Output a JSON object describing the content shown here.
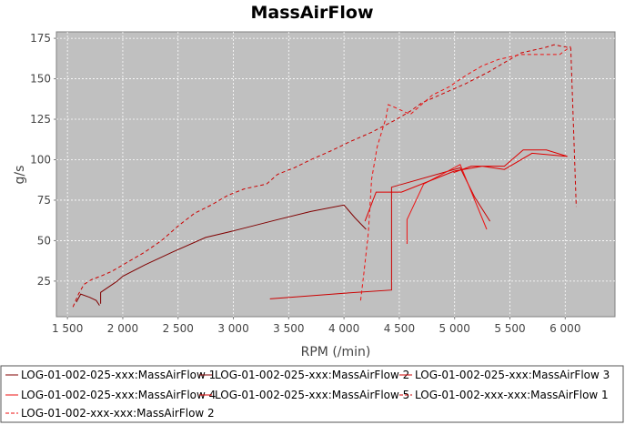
{
  "chart_data": {
    "type": "line",
    "title": "MassAirFlow",
    "xlabel": "RPM (/min)",
    "ylabel": "g/s",
    "xlim": [
      1400,
      6450
    ],
    "ylim": [
      3,
      179
    ],
    "x_ticks": [
      1500,
      2000,
      2500,
      3000,
      3500,
      4000,
      4500,
      5000,
      5500,
      6000
    ],
    "x_tick_labels": [
      "1 500",
      "2 000",
      "2 500",
      "3 000",
      "3 500",
      "4 000",
      "4 500",
      "5 000",
      "5 500",
      "6 000"
    ],
    "y_ticks": [
      25,
      50,
      75,
      100,
      125,
      150,
      175
    ],
    "y_tick_labels": [
      "25",
      "50",
      "75",
      "100",
      "125",
      "150",
      "175"
    ],
    "grid": true,
    "legend_position": "bottom",
    "series": [
      {
        "name": "LOG-01-002-025-xxx:MassAirFlow 1",
        "color": "#800000",
        "dash": false,
        "points": [
          [
            1580,
            12
          ],
          [
            1620,
            17
          ],
          [
            1700,
            15
          ],
          [
            1760,
            13
          ],
          [
            1790,
            10
          ],
          [
            1770,
            12
          ]
        ]
      },
      {
        "name": "LOG-01-002-025-xxx:MassAirFlow 2",
        "color": "#800000",
        "dash": false,
        "points": [
          [
            1800,
            11
          ],
          [
            1800,
            18
          ],
          [
            1950,
            25
          ],
          [
            2000,
            28
          ],
          [
            2200,
            35
          ],
          [
            2450,
            43
          ],
          [
            2750,
            52
          ],
          [
            3000,
            56
          ],
          [
            3400,
            63
          ],
          [
            3700,
            68
          ],
          [
            4000,
            72
          ],
          [
            4100,
            64
          ],
          [
            4200,
            57
          ]
        ]
      },
      {
        "name": "LOG-01-002-025-xxx:MassAirFlow 3",
        "color": "#cc0000",
        "dash": false,
        "points": [
          [
            3330,
            14
          ],
          [
            4000,
            17.5
          ],
          [
            4430,
            19.5
          ],
          [
            4430,
            83
          ],
          [
            5050,
            95
          ],
          [
            5180,
            77
          ],
          [
            5320,
            62
          ]
        ]
      },
      {
        "name": "LOG-01-002-025-xxx:MassAirFlow 4",
        "color": "#ee1111",
        "dash": false,
        "points": [
          [
            4570,
            48
          ],
          [
            4570,
            63
          ],
          [
            4720,
            85
          ],
          [
            5050,
            97
          ],
          [
            5290,
            57
          ]
        ]
      },
      {
        "name": "LOG-01-002-025-xxx:MassAirFlow 5",
        "color": "#dd0000",
        "dash": false,
        "points": [
          [
            4190,
            62
          ],
          [
            4290,
            80
          ],
          [
            4520,
            80
          ],
          [
            5000,
            93
          ],
          [
            5250,
            96
          ],
          [
            5450,
            94
          ],
          [
            5700,
            104
          ],
          [
            6020,
            102
          ],
          [
            5830,
            106
          ],
          [
            5620,
            106
          ],
          [
            5450,
            96
          ],
          [
            5150,
            96
          ],
          [
            4990,
            92
          ]
        ]
      },
      {
        "name": "LOG-01-002-xxx-xxx:MassAirFlow 1",
        "color": "#cc0000",
        "dash": true,
        "points": [
          [
            1550,
            9
          ],
          [
            1600,
            17
          ],
          [
            1650,
            23
          ],
          [
            1720,
            26
          ],
          [
            1800,
            28
          ],
          [
            1900,
            31
          ],
          [
            2000,
            35
          ],
          [
            2200,
            43
          ],
          [
            2350,
            50
          ],
          [
            2500,
            59
          ],
          [
            2650,
            67
          ],
          [
            2800,
            72
          ],
          [
            2950,
            78
          ],
          [
            3100,
            82
          ],
          [
            3300,
            85
          ],
          [
            3400,
            91
          ],
          [
            3550,
            95
          ],
          [
            3700,
            100
          ],
          [
            3900,
            106
          ],
          [
            4050,
            111
          ],
          [
            4250,
            117
          ],
          [
            4450,
            124
          ],
          [
            4600,
            130
          ],
          [
            4700,
            135
          ],
          [
            4900,
            141
          ],
          [
            5100,
            147
          ],
          [
            5300,
            154
          ],
          [
            5450,
            160
          ],
          [
            5600,
            166
          ],
          [
            5800,
            169
          ],
          [
            5900,
            171
          ],
          [
            6050,
            169
          ],
          [
            6100,
            71
          ]
        ]
      },
      {
        "name": "LOG-01-002-xxx-xxx:MassAirFlow 2",
        "color": "#ee1111",
        "dash": true,
        "points": [
          [
            4150,
            13
          ],
          [
            4180,
            30
          ],
          [
            4220,
            55
          ],
          [
            4250,
            88
          ],
          [
            4300,
            108
          ],
          [
            4380,
            126
          ],
          [
            4400,
            134
          ],
          [
            4470,
            132
          ],
          [
            4600,
            128
          ],
          [
            4700,
            134
          ],
          [
            4800,
            140
          ],
          [
            4950,
            145
          ],
          [
            5100,
            152
          ],
          [
            5250,
            158
          ],
          [
            5400,
            162
          ],
          [
            5600,
            165
          ],
          [
            5800,
            165
          ],
          [
            5950,
            165
          ],
          [
            6050,
            170
          ]
        ]
      }
    ]
  }
}
